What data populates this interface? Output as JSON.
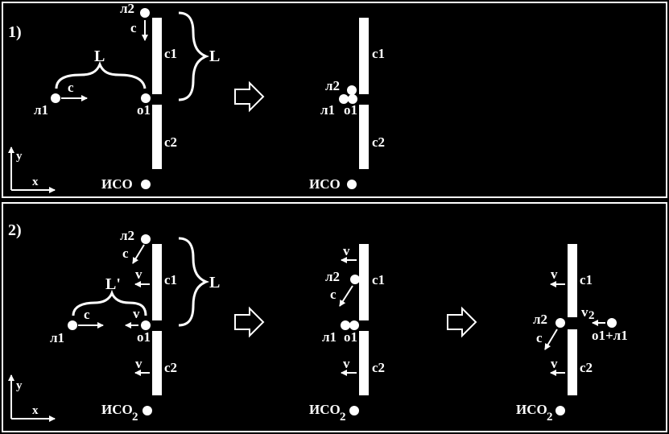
{
  "colors": {
    "background": "#000000",
    "foreground": "#ffffff"
  },
  "panel1": {
    "number": "1)",
    "before": {
      "l1": "л1",
      "l2": "л2",
      "o1": "о1",
      "c1": "с1",
      "c2": "с2",
      "speed_l1": "с",
      "speed_l2": "с",
      "dist_h": "L",
      "dist_v": "L",
      "frame": "ИСО"
    },
    "after": {
      "l1": "л1",
      "l2": "л2",
      "o1": "о1",
      "c1": "с1",
      "c2": "с2",
      "frame": "ИСО"
    },
    "axes": {
      "x": "x",
      "y": "y"
    }
  },
  "panel2": {
    "number": "2)",
    "before": {
      "l1": "л1",
      "l2": "л2",
      "o1": "о1",
      "c1": "с1",
      "c2": "с2",
      "speed_l1": "с",
      "speed_l2": "с",
      "v_c1": "v",
      "v_o1": "v",
      "v_c2": "v",
      "dist_h": "L'",
      "dist_v": "L",
      "frame": "ИСО",
      "frame_sub": "2"
    },
    "middle": {
      "l1": "л1",
      "l2": "л2",
      "o1": "о1",
      "c1": "с1",
      "c2": "с2",
      "speed_l2": "с",
      "v_c1": "v",
      "v_c2": "v",
      "frame": "ИСО",
      "frame_sub": "2"
    },
    "after": {
      "l2": "л2",
      "o1l1": "о1+л1",
      "c1": "с1",
      "c2": "с2",
      "speed_l2": "с",
      "v_c1": "v",
      "v_c2": "v",
      "v2": "v",
      "v2_sub": "2",
      "frame": "ИСО",
      "frame_sub": "2"
    },
    "axes": {
      "x": "x",
      "y": "y"
    }
  }
}
